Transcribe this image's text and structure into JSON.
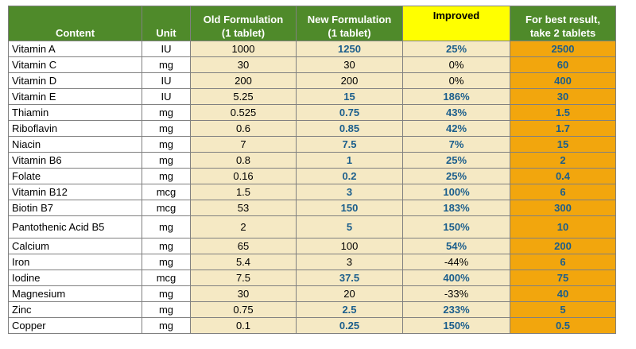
{
  "headers": {
    "content": "Content",
    "unit": "Unit",
    "old_line1": "Old Formulation",
    "old_line2": "(1 tablet)",
    "new_line1": "New Formulation",
    "new_line2": "(1 tablet)",
    "improved": "Improved",
    "best_line1": "For best result,",
    "best_line2": "take 2 tablets"
  },
  "colors": {
    "header_green": "#4f8a2a",
    "improved_header": "#ffff00",
    "cell_cream": "#f5e9c4",
    "best_orange": "#f2a60d",
    "highlight_blue": "#1b5e8c"
  },
  "rows": [
    {
      "content": "Vitamin A",
      "unit": "IU",
      "old": "1000",
      "new": "1250",
      "improved": "25%",
      "best": "2500",
      "new_hl": true,
      "imp_hl": true
    },
    {
      "content": "Vitamin C",
      "unit": "mg",
      "old": "30",
      "new": "30",
      "improved": "0%",
      "best": "60",
      "new_hl": false,
      "imp_hl": false
    },
    {
      "content": "Vitamin D",
      "unit": "IU",
      "old": "200",
      "new": "200",
      "improved": "0%",
      "best": "400",
      "new_hl": false,
      "imp_hl": false
    },
    {
      "content": "Vitamin E",
      "unit": "IU",
      "old": "5.25",
      "new": "15",
      "improved": "186%",
      "best": "30",
      "new_hl": true,
      "imp_hl": true
    },
    {
      "content": "Thiamin",
      "unit": "mg",
      "old": "0.525",
      "new": "0.75",
      "improved": "43%",
      "best": "1.5",
      "new_hl": true,
      "imp_hl": true
    },
    {
      "content": "Riboflavin",
      "unit": "mg",
      "old": "0.6",
      "new": "0.85",
      "improved": "42%",
      "best": "1.7",
      "new_hl": true,
      "imp_hl": true
    },
    {
      "content": "Niacin",
      "unit": "mg",
      "old": "7",
      "new": "7.5",
      "improved": "7%",
      "best": "15",
      "new_hl": true,
      "imp_hl": true
    },
    {
      "content": "Vitamin B6",
      "unit": "mg",
      "old": "0.8",
      "new": "1",
      "improved": "25%",
      "best": "2",
      "new_hl": true,
      "imp_hl": true
    },
    {
      "content": "Folate",
      "unit": "mg",
      "old": "0.16",
      "new": "0.2",
      "improved": "25%",
      "best": "0.4",
      "new_hl": true,
      "imp_hl": true
    },
    {
      "content": "Vitamin B12",
      "unit": "mcg",
      "old": "1.5",
      "new": "3",
      "improved": "100%",
      "best": "6",
      "new_hl": true,
      "imp_hl": true
    },
    {
      "content": "Biotin B7",
      "unit": "mcg",
      "old": "53",
      "new": "150",
      "improved": "183%",
      "best": "300",
      "new_hl": true,
      "imp_hl": true
    },
    {
      "content": "Pantothenic Acid B5",
      "unit": "mg",
      "old": "2",
      "new": "5",
      "improved": "150%",
      "best": "10",
      "new_hl": true,
      "imp_hl": true,
      "tall": true
    },
    {
      "content": "Calcium",
      "unit": "mg",
      "old": "65",
      "new": "100",
      "improved": "54%",
      "best": "200",
      "new_hl": false,
      "imp_hl": true
    },
    {
      "content": "Iron",
      "unit": "mg",
      "old": "5.4",
      "new": "3",
      "improved": "-44%",
      "best": "6",
      "new_hl": false,
      "imp_hl": false
    },
    {
      "content": "Iodine",
      "unit": "mcg",
      "old": "7.5",
      "new": "37.5",
      "improved": "400%",
      "best": "75",
      "new_hl": true,
      "imp_hl": true
    },
    {
      "content": "Magnesium",
      "unit": "mg",
      "old": "30",
      "new": "20",
      "improved": "-33%",
      "best": "40",
      "new_hl": false,
      "imp_hl": false
    },
    {
      "content": "Zinc",
      "unit": "mg",
      "old": "0.75",
      "new": "2.5",
      "improved": "233%",
      "best": "5",
      "new_hl": true,
      "imp_hl": true
    },
    {
      "content": "Copper",
      "unit": "mg",
      "old": "0.1",
      "new": "0.25",
      "improved": "150%",
      "best": "0.5",
      "new_hl": true,
      "imp_hl": true
    }
  ]
}
